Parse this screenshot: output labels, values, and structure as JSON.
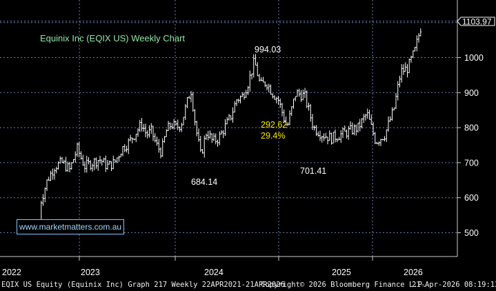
{
  "chart_data": {
    "type": "line",
    "title": "Equinix Inc (EQIX US) Weekly Chart",
    "xlabel": "",
    "ylabel": "",
    "ylim": [
      440,
      1160
    ],
    "grid": true,
    "x_tick_labels": [
      "2022",
      "2023",
      "2024",
      "2025",
      "2026"
    ],
    "y_tick_labels": [
      500,
      600,
      700,
      800,
      900,
      1000
    ],
    "last_price_label": "1103.97",
    "annotations": [
      {
        "text": "994.03",
        "color": "#ffffff"
      },
      {
        "text": "684.14",
        "color": "#ffffff"
      },
      {
        "text": "701.41",
        "color": "#ffffff"
      },
      {
        "text": "292.62",
        "color": "#ffe600"
      },
      {
        "text": "29.4%",
        "color": "#ffe600"
      }
    ],
    "series": [
      {
        "values": [
          {
            "x": "2021-12-06",
            "y": 520
          },
          {
            "x": "2022-01-03",
            "y": 580
          },
          {
            "x": "2022-01-31",
            "y": 650
          },
          {
            "x": "2022-02-28",
            "y": 690
          },
          {
            "x": "2022-03-28",
            "y": 700
          },
          {
            "x": "2022-04-25",
            "y": 680
          },
          {
            "x": "2022-05-23",
            "y": 740
          },
          {
            "x": "2022-06-20",
            "y": 690
          },
          {
            "x": "2022-07-18",
            "y": 700
          },
          {
            "x": "2022-08-15",
            "y": 710
          },
          {
            "x": "2022-09-12",
            "y": 690
          },
          {
            "x": "2022-10-10",
            "y": 700
          },
          {
            "x": "2022-11-07",
            "y": 740
          },
          {
            "x": "2022-12-05",
            "y": 760
          },
          {
            "x": "2023-01-02",
            "y": 790
          },
          {
            "x": "2023-01-30",
            "y": 810
          },
          {
            "x": "2023-02-27",
            "y": 780
          },
          {
            "x": "2023-03-27",
            "y": 790
          },
          {
            "x": "2023-04-24",
            "y": 750
          },
          {
            "x": "2023-05-22",
            "y": 730
          },
          {
            "x": "2023-06-19",
            "y": 790
          },
          {
            "x": "2023-07-17",
            "y": 810
          },
          {
            "x": "2023-08-14",
            "y": 800
          },
          {
            "x": "2023-09-11",
            "y": 810
          },
          {
            "x": "2023-10-09",
            "y": 860
          },
          {
            "x": "2023-11-06",
            "y": 910
          },
          {
            "x": "2023-12-04",
            "y": 800
          },
          {
            "x": "2024-01-01",
            "y": 720
          },
          {
            "x": "2024-01-29",
            "y": 790
          },
          {
            "x": "2024-02-26",
            "y": 760
          },
          {
            "x": "2024-03-25",
            "y": 770
          },
          {
            "x": "2024-04-22",
            "y": 800
          },
          {
            "x": "2024-05-20",
            "y": 830
          },
          {
            "x": "2024-06-17",
            "y": 880
          },
          {
            "x": "2024-07-15",
            "y": 890
          },
          {
            "x": "2024-08-12",
            "y": 930
          },
          {
            "x": "2024-09-09",
            "y": 990
          },
          {
            "x": "2024-10-07",
            "y": 920
          },
          {
            "x": "2024-11-04",
            "y": 930
          },
          {
            "x": "2024-12-02",
            "y": 900
          },
          {
            "x": "2024-12-30",
            "y": 880
          },
          {
            "x": "2025-01-27",
            "y": 800
          },
          {
            "x": "2025-02-24",
            "y": 900
          },
          {
            "x": "2025-03-24",
            "y": 890
          },
          {
            "x": "2025-04-21",
            "y": 800
          },
          {
            "x": "2025-05-19",
            "y": 780
          },
          {
            "x": "2025-06-16",
            "y": 770
          },
          {
            "x": "2025-07-14",
            "y": 780
          },
          {
            "x": "2025-08-11",
            "y": 790
          },
          {
            "x": "2025-09-08",
            "y": 800
          },
          {
            "x": "2025-10-06",
            "y": 840
          },
          {
            "x": "2025-11-03",
            "y": 760
          },
          {
            "x": "2025-12-01",
            "y": 780
          },
          {
            "x": "2025-12-29",
            "y": 850
          },
          {
            "x": "2026-01-26",
            "y": 960
          },
          {
            "x": "2026-02-23",
            "y": 970
          },
          {
            "x": "2026-03-23",
            "y": 1020
          },
          {
            "x": "2026-04-21",
            "y": 1103.97
          }
        ]
      }
    ]
  },
  "footer": {
    "left": "EQIX US Equity (Equinix Inc) Graph 217 Weekly 22APR2021-21APR2026",
    "center": "Copyright© 2026 Bloomberg Finance L.P.",
    "right": "21-Apr-2026 08:19:13"
  },
  "watermark": "www.marketmatters.com.au",
  "colors": {
    "background": "#000000",
    "grid": "#6a7fb8",
    "price": "#ffffff",
    "title": "#8fe6a6",
    "highlight": "#ffe600",
    "watermark": "#9fd6ff"
  }
}
